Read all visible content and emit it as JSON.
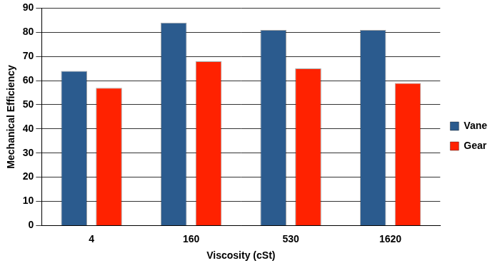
{
  "chart_data": {
    "type": "bar",
    "x_label": "Viscosity (cSt)",
    "y_label": "Mechanical Efficiency",
    "categories": [
      "4",
      "160",
      "530",
      "1620"
    ],
    "series": [
      {
        "name": "Vane",
        "color": "#2b5b8e",
        "values": [
          64,
          84,
          81,
          81
        ]
      },
      {
        "name": "Gear",
        "color": "#ff2200",
        "values": [
          57,
          68,
          65,
          59
        ]
      }
    ],
    "ylim": [
      0,
      90
    ],
    "yticks": [
      0,
      10,
      20,
      30,
      40,
      50,
      60,
      70,
      80,
      90
    ],
    "grid": true,
    "legend": "right"
  }
}
